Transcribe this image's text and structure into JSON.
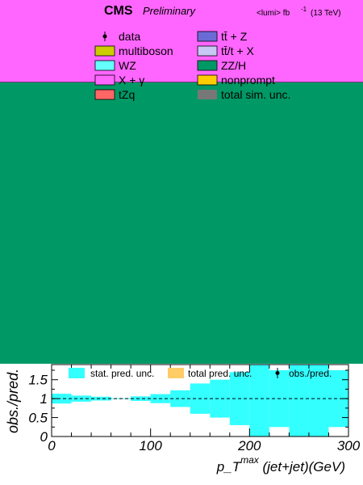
{
  "header": {
    "cms_label": "CMS",
    "preliminary_label": "Preliminary",
    "lumi_label": "<lumi> fb",
    "lumi_exponent": "-1",
    "energy_label": "(13 TeV)"
  },
  "legend": [
    {
      "label": "data",
      "kind": "marker",
      "color": "#000000"
    },
    {
      "label": "tt̄ + Z",
      "kind": "box",
      "color": "#6b6bd6"
    },
    {
      "label": "multiboson",
      "kind": "box",
      "color": "#cccc00"
    },
    {
      "label": "tt̄/t + X",
      "kind": "box",
      "color": "#c8c8f5"
    },
    {
      "label": "WZ",
      "kind": "box",
      "color": "#66ffff"
    },
    {
      "label": "ZZ/H",
      "kind": "box",
      "color": "#009966"
    },
    {
      "label": "X + γ",
      "kind": "box",
      "color": "#ff66ff"
    },
    {
      "label": "nonprompt",
      "kind": "box",
      "color": "#ffcc00"
    },
    {
      "label": "tZq",
      "kind": "box",
      "color": "#ff6666"
    },
    {
      "label": "total sim. unc.",
      "kind": "hatch",
      "color": "#777777"
    }
  ],
  "colors": {
    "top_band": "#ff66ff",
    "main_fill": "#009966",
    "stat_unc": "#33ffff",
    "total_unc": "#ffcc66"
  },
  "ratio_legend": {
    "stat": "stat. pred. unc.",
    "total": "total pred. unc.",
    "obs": "obs./pred."
  },
  "chart_data": {
    "type": "bar",
    "panel": "ratio",
    "xlabel": "p_T^max (jet+jet)(GeV)",
    "ylabel": "obs./pred.",
    "xlim": [
      0,
      300
    ],
    "ylim": [
      0,
      1.9
    ],
    "x_ticks": [
      0,
      100,
      200,
      300
    ],
    "y_ticks": [
      0,
      0.5,
      1,
      1.5
    ],
    "reference_line": 1.0,
    "bin_edges": [
      0,
      20,
      40,
      60,
      80,
      100,
      120,
      140,
      160,
      180,
      200,
      220,
      240,
      260,
      280,
      300
    ],
    "stat_unc_low": [
      0.87,
      0.92,
      0.95,
      0.99,
      0.94,
      0.88,
      0.78,
      0.6,
      0.5,
      0.3,
      0.0,
      0.25,
      0.0,
      0.0,
      0.25
    ],
    "stat_unc_high": [
      1.13,
      1.08,
      1.05,
      1.01,
      1.06,
      1.12,
      1.22,
      1.4,
      1.5,
      1.7,
      2.0,
      1.75,
      2.0,
      2.0,
      1.75
    ],
    "series": [
      {
        "name": "stat. pred. unc."
      },
      {
        "name": "total pred. unc."
      },
      {
        "name": "obs./pred."
      }
    ]
  }
}
